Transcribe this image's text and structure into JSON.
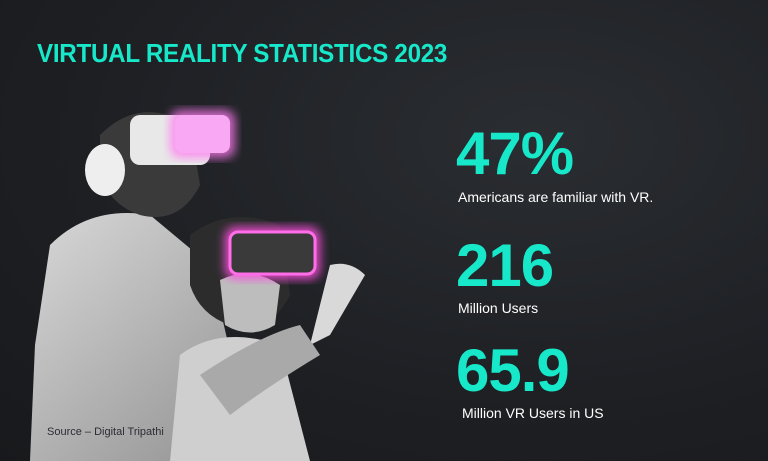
{
  "title": "VIRTUAL REALITY STATISTICS 2023",
  "colors": {
    "accent": "#16e8c9",
    "headset_glow": "#ff4fe0",
    "background": "#1e2024"
  },
  "stats": [
    {
      "value": "47%",
      "label": "Americans are familiar with VR."
    },
    {
      "value": "216",
      "label": "Million Users"
    },
    {
      "value": "65.9",
      "label": "Million VR Users in US"
    }
  ],
  "source": "Source – Digital Tripathi"
}
